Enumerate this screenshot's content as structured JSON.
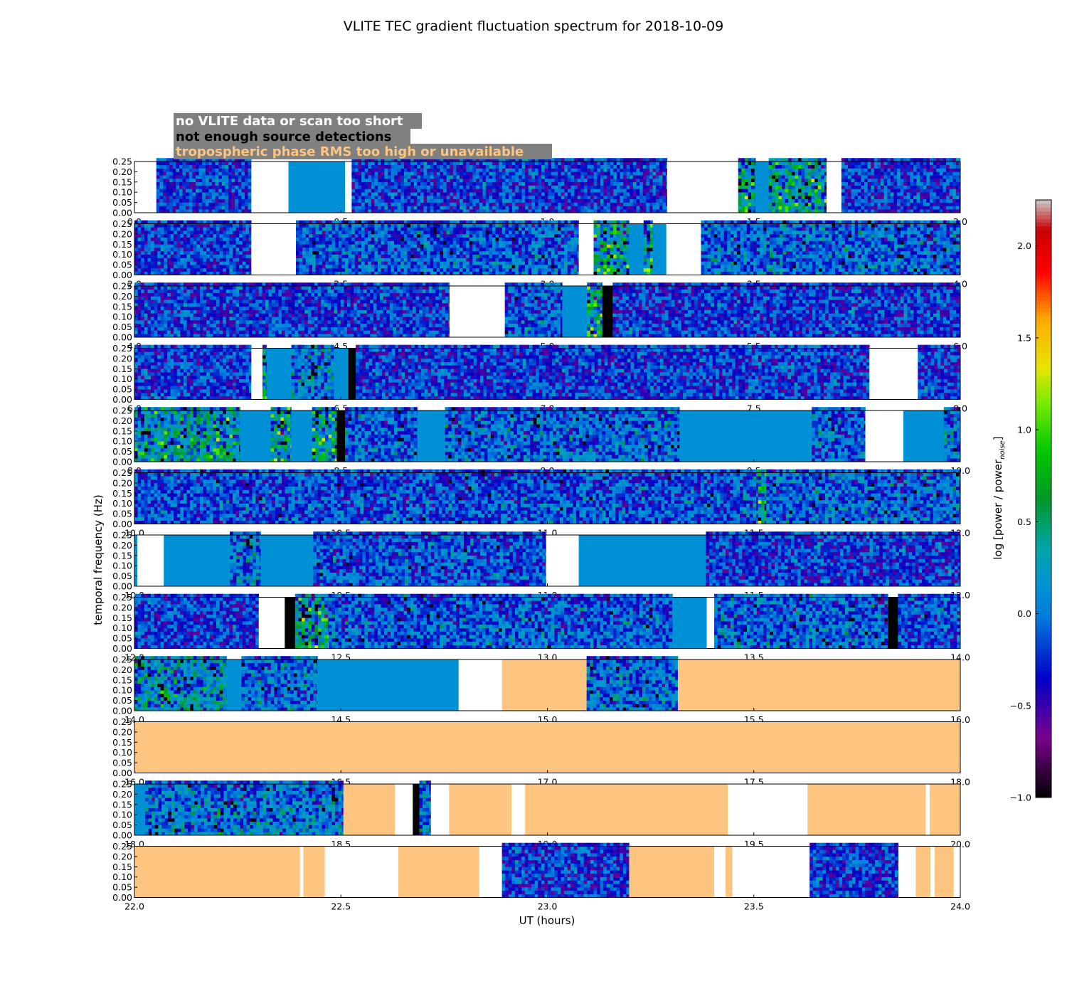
{
  "chart_data": {
    "type": "heatmap",
    "title": "VLITE TEC gradient fluctuation spectrum for 2018-10-09",
    "xlabel": "UT (hours)",
    "ylabel": "temporal frequency (Hz)",
    "colorbar_label": "log [power / power",
    "colorbar_label_sub": "noise",
    "colorbar_label_end": "]",
    "colorbar_range": [
      -1.0,
      2.25
    ],
    "colorbar_ticks": [
      "−1.0",
      "−0.5",
      "0.0",
      "0.5",
      "1.0",
      "1.5",
      "2.0"
    ],
    "colormap": "nipy_spectral",
    "y_range": [
      0,
      0.25
    ],
    "y_ticks": [
      "0.00",
      "0.05",
      "0.10",
      "0.15",
      "0.20",
      "0.25"
    ],
    "legend": [
      {
        "label": "no VLITE data or scan too short",
        "text_color": "#ffffff",
        "box_color": "#808080"
      },
      {
        "label": "not enough source detections",
        "text_color": "#000000",
        "box_color": "#808080"
      },
      {
        "label": "tropospheric phase RMS too high or unavailable",
        "text_color": "#fdc57f",
        "box_color": "#808080"
      }
    ],
    "category_colors": {
      "no_data": "#ffffff",
      "few_detections": "#000000",
      "tropo": "#fdc57f",
      "flat": "#0090d6"
    },
    "rows": [
      {
        "x_range": [
          0,
          2
        ],
        "x_ticks": [
          "0.0",
          "0.5",
          "1.0",
          "1.5",
          "2.0"
        ],
        "segments": [
          [
            "none",
            0,
            0.053
          ],
          [
            "data",
            0.053,
            0.283,
            0
          ],
          [
            "none",
            0.283,
            0.373
          ],
          [
            "flat",
            0.373,
            0.51
          ],
          [
            "none",
            0.51,
            0.526
          ],
          [
            "data",
            0.526,
            1.29,
            0
          ],
          [
            "none",
            1.29,
            1.462
          ],
          [
            "data",
            1.462,
            1.504,
            1.3
          ],
          [
            "flat",
            1.504,
            1.536
          ],
          [
            "data",
            1.536,
            1.676,
            1.3
          ],
          [
            "none",
            1.676,
            1.712
          ],
          [
            "data",
            1.712,
            2.0,
            0
          ]
        ]
      },
      {
        "x_range": [
          2,
          4
        ],
        "x_ticks": [
          "2.0",
          "2.5",
          "3.0",
          "3.5",
          "4.0"
        ],
        "segments": [
          [
            "data",
            2.0,
            2.283,
            0
          ],
          [
            "none",
            2.283,
            2.391
          ],
          [
            "data",
            2.391,
            3.076,
            0.3
          ],
          [
            "none",
            3.076,
            3.112
          ],
          [
            "data",
            3.112,
            3.198,
            1.4
          ],
          [
            "flat",
            3.198,
            3.233
          ],
          [
            "data",
            3.233,
            3.255,
            1.5
          ],
          [
            "flat",
            3.255,
            3.288
          ],
          [
            "none",
            3.288,
            3.372
          ],
          [
            "data",
            3.372,
            4.0,
            0.4
          ]
        ]
      },
      {
        "x_range": [
          4,
          6
        ],
        "x_ticks": [
          "4.0",
          "4.5",
          "5.0",
          "5.5",
          "6.0"
        ],
        "segments": [
          [
            "data",
            4.0,
            4.763,
            0
          ],
          [
            "none",
            4.763,
            4.897
          ],
          [
            "data",
            4.897,
            5.036,
            0.2
          ],
          [
            "flat",
            5.036,
            5.096
          ],
          [
            "data",
            5.096,
            5.133,
            1.5
          ],
          [
            "black",
            5.133,
            5.158
          ],
          [
            "data",
            5.158,
            6.0,
            0
          ]
        ]
      },
      {
        "x_range": [
          6,
          8
        ],
        "x_ticks": [
          "6.0",
          "6.5",
          "7.0",
          "7.5",
          "8.0"
        ],
        "segments": [
          [
            "data",
            6.0,
            6.283,
            0
          ],
          [
            "none",
            6.283,
            6.31
          ],
          [
            "data",
            6.31,
            6.32,
            1.4
          ],
          [
            "flat",
            6.32,
            6.38
          ],
          [
            "data",
            6.38,
            6.483,
            0.7
          ],
          [
            "flat",
            6.483,
            6.518
          ],
          [
            "black",
            6.518,
            6.536
          ],
          [
            "data",
            6.536,
            7.78,
            0
          ],
          [
            "none",
            7.78,
            7.897
          ],
          [
            "data",
            7.897,
            8.0,
            0
          ]
        ]
      },
      {
        "x_range": [
          8,
          10
        ],
        "x_ticks": [
          "8.0",
          "8.5",
          "9.0",
          "9.5",
          "10.0"
        ],
        "segments": [
          [
            "data",
            8.0,
            8.256,
            1.2
          ],
          [
            "flat",
            8.256,
            8.33
          ],
          [
            "data",
            8.33,
            8.38,
            1.5
          ],
          [
            "flat",
            8.38,
            8.43
          ],
          [
            "data",
            8.43,
            8.49,
            1.5
          ],
          [
            "black",
            8.49,
            8.51
          ],
          [
            "data",
            8.51,
            8.685,
            0.3
          ],
          [
            "flat",
            8.685,
            8.752
          ],
          [
            "data",
            8.752,
            9.32,
            0.4
          ],
          [
            "flat",
            9.32,
            9.64
          ],
          [
            "data",
            9.64,
            9.77,
            0.3
          ],
          [
            "none",
            9.77,
            9.862
          ],
          [
            "flat",
            9.862,
            9.96
          ],
          [
            "data",
            9.96,
            10.0,
            0.6
          ]
        ]
      },
      {
        "x_range": [
          10,
          12
        ],
        "x_ticks": [
          "10.0",
          "10.5",
          "11.0",
          "11.5",
          "12.0"
        ],
        "segments": [
          [
            "data",
            10.0,
            11.51,
            0.2
          ],
          [
            "data",
            11.51,
            11.53,
            1.6
          ],
          [
            "data",
            11.53,
            12.0,
            0.4
          ]
        ]
      },
      {
        "x_range": [
          10,
          12
        ],
        "x_ticks": [
          "10.0",
          "10.5",
          "11.0",
          "11.5",
          "12.0"
        ],
        "segments": [
          [
            "flat",
            10.0,
            10.007
          ],
          [
            "none",
            10.007,
            10.071
          ],
          [
            "flat",
            10.071,
            10.231
          ],
          [
            "data",
            10.231,
            10.306,
            0.6
          ],
          [
            "flat",
            10.306,
            10.433
          ],
          [
            "data",
            10.433,
            10.997,
            0.2
          ],
          [
            "none",
            10.997,
            11.076
          ],
          [
            "flat",
            11.076,
            11.384
          ],
          [
            "data",
            11.384,
            12.0,
            0
          ]
        ]
      },
      {
        "x_range": [
          12,
          14
        ],
        "x_ticks": [
          "12.0",
          "12.5",
          "13.0",
          "13.5",
          "14.0"
        ],
        "segments": [
          [
            "data",
            12.0,
            12.301,
            0
          ],
          [
            "none",
            12.301,
            12.364
          ],
          [
            "black",
            12.364,
            12.389
          ],
          [
            "data",
            12.389,
            12.47,
            1.4
          ],
          [
            "data",
            12.47,
            13.303,
            0.3
          ],
          [
            "flat",
            13.303,
            13.386
          ],
          [
            "none",
            13.386,
            13.404
          ],
          [
            "data",
            13.404,
            13.825,
            0.4
          ],
          [
            "black",
            13.825,
            13.849
          ],
          [
            "data",
            13.849,
            14.0,
            0.2
          ]
        ]
      },
      {
        "x_range": [
          14,
          16
        ],
        "x_ticks": [
          "14.0",
          "14.5",
          "15.0",
          "15.5",
          "16.0"
        ],
        "segments": [
          [
            "data",
            14.0,
            14.223,
            1.0
          ],
          [
            "flat",
            14.223,
            14.259
          ],
          [
            "data",
            14.259,
            14.443,
            0.4
          ],
          [
            "flat",
            14.443,
            14.785
          ],
          [
            "none",
            14.785,
            14.89
          ],
          [
            "tropo",
            14.89,
            15.095
          ],
          [
            "data",
            15.095,
            15.316,
            0.5
          ],
          [
            "tropo",
            15.316,
            16.0
          ]
        ]
      },
      {
        "x_range": [
          16,
          18
        ],
        "x_ticks": [
          "16.0",
          "16.5",
          "17.0",
          "17.5",
          "18.0"
        ],
        "segments": [
          [
            "tropo",
            16.0,
            18.0
          ]
        ]
      },
      {
        "x_range": [
          18,
          20
        ],
        "x_ticks": [
          "18.0",
          "18.5",
          "19.0",
          "19.5",
          "20.0"
        ],
        "segments": [
          [
            "flat",
            18.0,
            18.026
          ],
          [
            "data",
            18.026,
            18.506,
            0.6
          ],
          [
            "tropo",
            18.506,
            18.631
          ],
          [
            "none",
            18.631,
            18.674
          ],
          [
            "black",
            18.674,
            18.69
          ],
          [
            "data",
            18.69,
            18.718,
            0.5
          ],
          [
            "none",
            18.718,
            18.762
          ],
          [
            "tropo",
            18.762,
            18.913
          ],
          [
            "none",
            18.913,
            18.946
          ],
          [
            "tropo",
            18.946,
            19.437
          ],
          [
            "none",
            19.437,
            19.63
          ],
          [
            "tropo",
            19.63,
            19.916
          ],
          [
            "none",
            19.916,
            19.926
          ],
          [
            "tropo",
            19.926,
            20.0
          ]
        ]
      },
      {
        "x_range": [
          22,
          24
        ],
        "x_ticks": [
          "22.0",
          "22.5",
          "23.0",
          "23.5",
          "24.0"
        ],
        "segments": [
          [
            "tropo",
            22.0,
            22.401
          ],
          [
            "none",
            22.401,
            22.409
          ],
          [
            "tropo",
            22.409,
            22.461
          ],
          [
            "none",
            22.461,
            22.639
          ],
          [
            "tropo",
            22.639,
            22.835
          ],
          [
            "none",
            22.835,
            22.89
          ],
          [
            "data",
            22.89,
            23.198,
            0
          ],
          [
            "tropo",
            23.198,
            23.404
          ],
          [
            "none",
            23.404,
            23.431
          ],
          [
            "tropo",
            23.431,
            23.448
          ],
          [
            "none",
            23.448,
            23.635
          ],
          [
            "data",
            23.635,
            23.85,
            0
          ],
          [
            "none",
            23.85,
            23.892
          ],
          [
            "tropo",
            23.892,
            23.928
          ],
          [
            "none",
            23.928,
            23.938
          ],
          [
            "tropo",
            23.938,
            23.984
          ],
          [
            "none",
            23.984,
            24.0
          ]
        ]
      }
    ]
  }
}
